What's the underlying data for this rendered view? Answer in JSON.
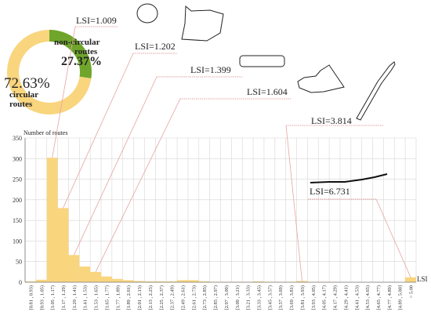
{
  "chart_data": [
    {
      "type": "pie",
      "style": "donut",
      "slices": [
        {
          "label_value": "72.63%",
          "label_line1": "circular",
          "label_line2": "routes",
          "value": 72.63,
          "color": "#f9d57e"
        },
        {
          "label_value": "27.37%",
          "label_line1": "non-circular",
          "label_line2": "routes",
          "value": 27.37,
          "color": "#6fa52b"
        }
      ]
    },
    {
      "type": "bar",
      "ylabel": "Number of routes",
      "xlabel": "LSI",
      "ylim": [
        0,
        350
      ],
      "yticks": [
        0,
        50,
        100,
        150,
        200,
        250,
        300,
        350
      ],
      "bar_color": "#f9d57e",
      "grid": true,
      "categories": [
        "[0.81 , 0.93)",
        "[0.93 , 1.05)",
        "[1.05 , 1.17)",
        "[1.17 , 1.29)",
        "[1.29 , 1.41)",
        "[1.41 , 1.53)",
        "[1.53 , 1.65)",
        "[1.65 , 1.77)",
        "[1.77 , 1.89)",
        "[1.89 , 2.01)",
        "[2.01 , 2.13)",
        "[2.13 , 2.25)",
        "[2.25 , 2.37)",
        "[2.37 , 2.49)",
        "[2.49 , 2.61)",
        "[2.61 , 2.73)",
        "[2.73 , 2.85)",
        "[2.85 , 2.97)",
        "[2.97 , 3.09)",
        "[3.09 , 3.21)",
        "[3.21 , 3.33)",
        "[3.33 , 3.45)",
        "[3.45 , 3.57)",
        "[3.57 , 3.69)",
        "[3.69 , 3.81)",
        "[3.81 , 3.93)",
        "[3.93 , 4.05)",
        "[4.05 , 4.17)",
        "[4.17 , 4.29)",
        "[4.29 , 4.41)",
        "[4.41 , 4.53)",
        "[4.53 , 4.65)",
        "[4.65 , 4.77)",
        "[4.77 , 4.89)",
        "[4.89 , 5.00]",
        "> 5.00"
      ],
      "values": [
        2,
        6,
        302,
        180,
        66,
        38,
        25,
        14,
        8,
        5,
        3,
        2,
        2,
        2,
        5,
        5,
        2,
        1,
        1,
        1,
        1,
        2,
        1,
        1,
        1,
        3,
        1,
        1,
        1,
        0,
        0,
        0,
        0,
        0,
        0,
        12
      ],
      "annotations": [
        {
          "text": "LSI=1.009",
          "shape": "circle-shape-icon",
          "category_index": 2,
          "value": 302
        },
        {
          "text": "LSI=1.202",
          "shape": "polygon-shape-icon",
          "category_index": 3,
          "value": 180
        },
        {
          "text": "LSI=1.399",
          "shape": "rounded-rect-shape-icon",
          "category_index": 4,
          "value": 66
        },
        {
          "text": "LSI=1.604",
          "shape": "irregular-shape-icon",
          "category_index": 6,
          "value": 25
        },
        {
          "text": "LSI=3.814",
          "shape": "elongated-strip-shape-icon",
          "category_index": 25,
          "value": 3
        },
        {
          "text": "LSI=6.731",
          "shape": "line-route-shape-icon",
          "category_index": 35,
          "value": 12
        }
      ]
    }
  ]
}
